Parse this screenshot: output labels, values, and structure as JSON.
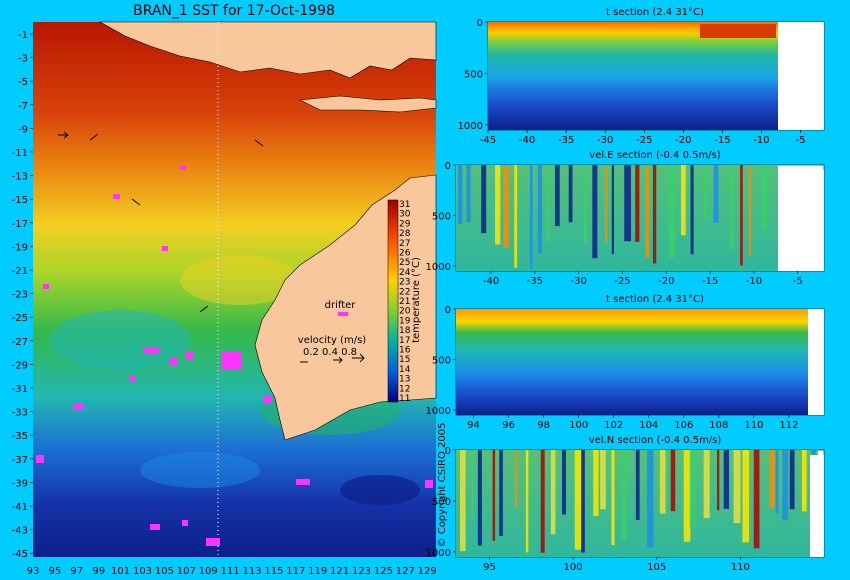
{
  "page": {
    "title": "BRAN_1 SST for 17-Oct-1998",
    "copyright": "© Copyright CSIRO 2005",
    "background": "#00ccff"
  },
  "map": {
    "lat_labels": [
      "-1",
      "-3",
      "-5",
      "-7",
      "-9",
      "-11",
      "-13",
      "-15",
      "-17",
      "-19",
      "-21",
      "-23",
      "-25",
      "-27",
      "-29",
      "-31",
      "-33",
      "-35",
      "-37",
      "-39",
      "-41",
      "-43",
      "-45"
    ],
    "lon_labels": [
      "93",
      "95",
      "97",
      "99",
      "101",
      "103",
      "105",
      "107",
      "109",
      "111",
      "113",
      "115",
      "117",
      "119",
      "121",
      "123",
      "125",
      "127",
      "129"
    ],
    "colorbar_ticks": [
      "31",
      "30",
      "29",
      "28",
      "27",
      "26",
      "25",
      "24",
      "23",
      "22",
      "21",
      "20",
      "19",
      "18",
      "17",
      "16",
      "15",
      "14",
      "13",
      "12",
      "11"
    ],
    "colorbar_label": "temperature (°C)",
    "drifter_label": "drifter",
    "velocity_label": "velocity (m/s)",
    "velocity_scale": "0.2 0.4 0.8",
    "land_color": "#f9c79c",
    "drifter_color": "#ff33ff"
  },
  "chart_data": [
    {
      "type": "heatmap",
      "title": "t section (2.4      31°C)",
      "x_ticks": [
        "-45",
        "-40",
        "-35",
        "-30",
        "-25",
        "-20",
        "-15",
        "-10",
        "-5"
      ],
      "y_ticks": [
        "0",
        "500",
        "1000"
      ],
      "xlim": [
        -45,
        -2
      ],
      "ylim": [
        0,
        1050
      ]
    },
    {
      "type": "heatmap",
      "title": "vel.E section (-0.4      0.5m/s)",
      "x_ticks": [
        "-40",
        "-35",
        "-30",
        "-25",
        "-20",
        "-15",
        "-10",
        "-5"
      ],
      "y_ticks": [
        "0",
        "500",
        "1000"
      ],
      "xlim": [
        -44,
        -2
      ],
      "ylim": [
        0,
        1050
      ]
    },
    {
      "type": "heatmap",
      "title": "t section (2.4      31°C)",
      "x_ticks": [
        "94",
        "96",
        "98",
        "100",
        "102",
        "104",
        "106",
        "108",
        "110",
        "112"
      ],
      "y_ticks": [
        "0",
        "500",
        "1000"
      ],
      "xlim": [
        93,
        114
      ],
      "ylim": [
        0,
        1050
      ]
    },
    {
      "type": "heatmap",
      "title": "vel.N section (-0.4      0.5m/s)",
      "x_ticks": [
        "95",
        "100",
        "105",
        "110"
      ],
      "y_ticks": [
        "0",
        "500",
        "1000"
      ],
      "xlim": [
        93,
        115
      ],
      "ylim": [
        0,
        1050
      ]
    }
  ]
}
